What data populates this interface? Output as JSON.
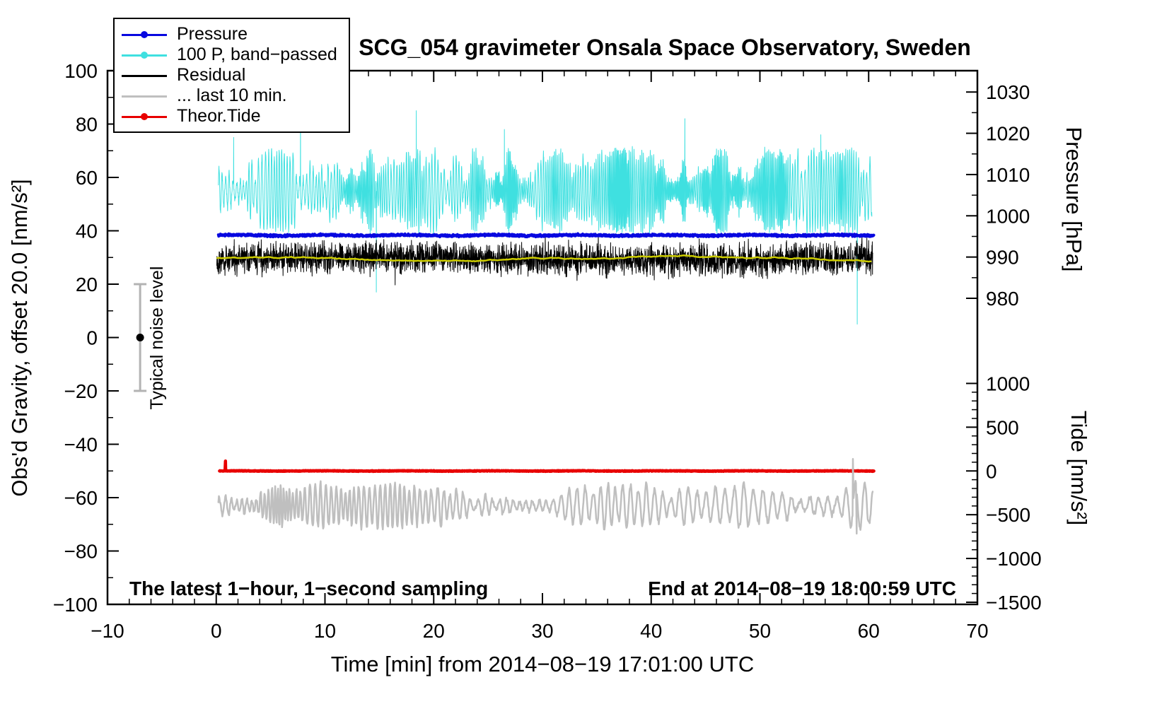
{
  "chart_data": {
    "type": "line",
    "title": "SCG_054 gravimeter Onsala Space Observatory, Sweden",
    "xlabel": "Time [min] from 2014−08−19 17:01:00 UTC",
    "ylabel": "Obs'd Gravity, offset 20.0 [nm/s²]",
    "xlim": [
      -10,
      70
    ],
    "ylim": [
      -100,
      100
    ],
    "x_major_step": 10,
    "x_minor_step": 2,
    "y_major_step": 20,
    "y_minor_step": 10,
    "grid": false,
    "legend_position": "top-left",
    "right_axis_pressure": {
      "label": "Pressure [hPa]",
      "ticks": [
        1030,
        1020,
        1010,
        1000,
        990,
        980
      ],
      "minor_step_hpa": 5,
      "gravity_of_980": 14.7,
      "gravity_per_hpa": 1.546
    },
    "right_axis_tide": {
      "label": "Tide [nm/s²]",
      "ticks": [
        1000,
        500,
        0,
        -500,
        -1000,
        -1500
      ],
      "minor_step": 100,
      "gravity_of_0": -50,
      "gravity_per_500": 16.4
    },
    "legend": [
      {
        "label": "Pressure",
        "color": "#0808e0",
        "marker": true
      },
      {
        "label": "100 P, band−passed",
        "color": "#3fe0e0",
        "marker": true
      },
      {
        "label": "Residual",
        "color": "#000000",
        "marker": false
      },
      {
        "label": "... last 10 min.",
        "color": "#bfbfbf",
        "marker": false
      },
      {
        "label": "Theor.Tide",
        "color": "#e80000",
        "marker": true
      }
    ],
    "annotations": {
      "noise_label": "Typical noise level",
      "noise_x": -7,
      "noise_center": 0,
      "noise_halfspan": 20,
      "sampling_note": "The latest 1−hour, 1−second sampling",
      "end_note": "End at 2014−08−19 18:00:59 UTC"
    },
    "series": [
      {
        "name": "band_passed",
        "kind": "oscillation",
        "color": "#3fe0e0",
        "width": 1,
        "x_start": 0.2,
        "x_end": 60.3,
        "dt": 0.012,
        "baseline": 55,
        "amplitude": 11,
        "min_period": 0.08,
        "max_period": 0.5,
        "seed": 11,
        "spikes": [
          {
            "x": 1.6,
            "y": 75
          },
          {
            "x": 7.75,
            "y": 84
          },
          {
            "x": 14.72,
            "y": 17
          },
          {
            "x": 18.4,
            "y": 85
          },
          {
            "x": 26.5,
            "y": 78
          },
          {
            "x": 43.1,
            "y": 82
          },
          {
            "x": 55.6,
            "y": 76
          },
          {
            "x": 58.95,
            "y": 5
          }
        ]
      },
      {
        "name": "residual",
        "kind": "noise",
        "color": "#000000",
        "width": 1,
        "x_start": 0.05,
        "x_end": 60.4,
        "dt": 0.0167,
        "baseline": 29.5,
        "amplitude": 6.5,
        "trend": 0.008,
        "seed": 22,
        "spikes": []
      },
      {
        "name": "residual_smoothed",
        "kind": "smooth",
        "color": "#cccc00",
        "width": 2.5,
        "x_start": 0.1,
        "x_end": 60.3,
        "dt": 0.1,
        "baseline": 29.3,
        "amplitude": 0.9,
        "seed": 33,
        "spikes": []
      },
      {
        "name": "pressure",
        "kind": "flat",
        "color": "#0808e0",
        "width": 4,
        "x_start": 0.2,
        "x_end": 60.5,
        "dt": 0.03,
        "baseline": 38.3,
        "amplitude": 0.5,
        "mean_hpa": 995.4,
        "seed": 44,
        "spikes": []
      },
      {
        "name": "theor_tide",
        "kind": "flat",
        "color": "#e80000",
        "width": 4.5,
        "x_start": 0.3,
        "x_end": 60.5,
        "dt": 0.03,
        "baseline": -50,
        "amplitude": 0.15,
        "tide_value": 0,
        "seed": 55,
        "spikes": [
          {
            "x": 0.85,
            "y": -46.3
          }
        ]
      },
      {
        "name": "last_10_min",
        "kind": "oscillation",
        "color": "#bfbfbf",
        "width": 2.5,
        "x_start": 0.2,
        "x_end": 60.4,
        "dt": 0.045,
        "baseline": -63,
        "amplitude": 6,
        "min_period": 0.25,
        "max_period": 0.9,
        "seed": 66,
        "spikes": [
          {
            "x": 58.55,
            "y": -45.5
          },
          {
            "x": 58.9,
            "y": -73.5
          }
        ]
      }
    ]
  }
}
